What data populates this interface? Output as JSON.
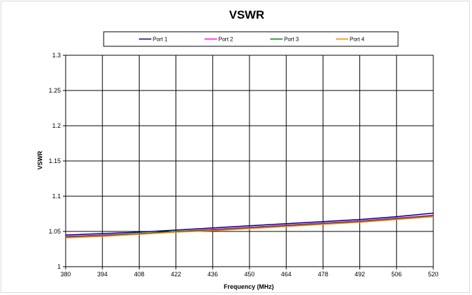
{
  "chart_data": {
    "type": "line",
    "title": "VSWR",
    "xlabel": "Frequency (MHz)",
    "ylabel": "VSWR",
    "xlim": [
      380,
      520
    ],
    "ylim": [
      1,
      1.3
    ],
    "x_ticks": [
      "380",
      "394",
      "408",
      "422",
      "436",
      "450",
      "464",
      "478",
      "492",
      "506",
      "520"
    ],
    "y_ticks": [
      "1",
      "1.05",
      "1.1",
      "1.15",
      "1.2",
      "1.25",
      "1.3"
    ],
    "grid": true,
    "legend_position": "top",
    "series": [
      {
        "name": "Port 1",
        "color": "#000080",
        "x": [
          380,
          394,
          408,
          422,
          436,
          450,
          464,
          478,
          492,
          506,
          520
        ],
        "y": [
          1.045,
          1.047,
          1.049,
          1.052,
          1.055,
          1.058,
          1.061,
          1.064,
          1.067,
          1.071,
          1.076
        ]
      },
      {
        "name": "Port 2",
        "color": "#ff00ff",
        "x": [
          380,
          394,
          408,
          422,
          436,
          450,
          464,
          478,
          492,
          506,
          520
        ],
        "y": [
          1.043,
          1.045,
          1.047,
          1.05,
          1.053,
          1.056,
          1.059,
          1.062,
          1.065,
          1.069,
          1.073
        ]
      },
      {
        "name": "Port 3",
        "color": "#008000",
        "x": [
          380,
          394,
          408,
          422,
          436,
          450,
          464,
          478,
          492,
          506,
          520
        ],
        "y": [
          1.042,
          1.044,
          1.047,
          1.05,
          1.052,
          1.055,
          1.058,
          1.061,
          1.064,
          1.068,
          1.072
        ]
      },
      {
        "name": "Port 4",
        "color": "#ff8000",
        "x": [
          380,
          394,
          408,
          422,
          436,
          450,
          464,
          478,
          492,
          506,
          520
        ],
        "y": [
          1.041,
          1.043,
          1.046,
          1.049,
          1.051,
          1.054,
          1.057,
          1.06,
          1.063,
          1.067,
          1.071
        ]
      }
    ]
  }
}
